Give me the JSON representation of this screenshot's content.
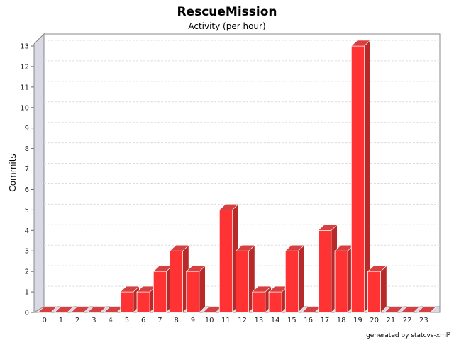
{
  "chart_data": {
    "type": "bar",
    "title": "RescueMission",
    "subtitle": "Activity (per hour)",
    "xlabel": "",
    "ylabel": "Commits",
    "categories": [
      "0",
      "1",
      "2",
      "3",
      "4",
      "5",
      "6",
      "7",
      "8",
      "9",
      "10",
      "11",
      "12",
      "13",
      "14",
      "15",
      "16",
      "17",
      "18",
      "19",
      "20",
      "21",
      "22",
      "23"
    ],
    "values": [
      0,
      0,
      0,
      0,
      0,
      1,
      1,
      2,
      3,
      2,
      0,
      5,
      3,
      1,
      1,
      3,
      0,
      4,
      3,
      13,
      2,
      0,
      0,
      0
    ],
    "ylim": [
      0,
      13
    ],
    "yticks": [
      0,
      1,
      2,
      3,
      4,
      5,
      6,
      7,
      8,
      9,
      10,
      11,
      12,
      13
    ],
    "grid": true,
    "legend": "none",
    "style": "3d",
    "colors": {
      "bar": "#ff3333",
      "bar_side": "#b82a2a",
      "bar_top": "#d64040",
      "wall": "#d9d9e6",
      "grid": "#dddddd"
    }
  },
  "footer": {
    "credit": "generated by statcvs-xml²"
  }
}
